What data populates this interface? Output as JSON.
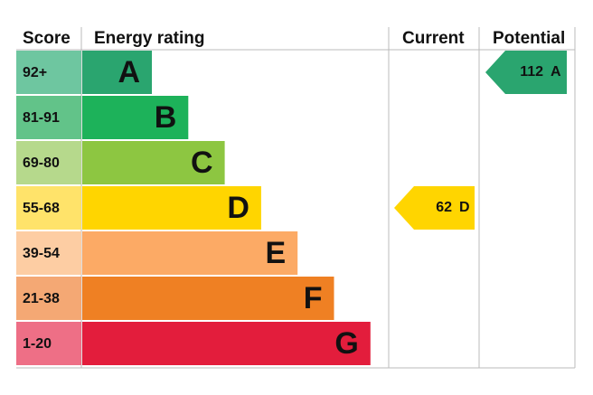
{
  "header": {
    "score": "Score",
    "rating": "Energy rating",
    "current": "Current",
    "potential": "Potential"
  },
  "bands": [
    {
      "score": "92+",
      "letter": "A",
      "color": "#2aa56f",
      "score_color": "#6ec6a0"
    },
    {
      "score": "81-91",
      "letter": "B",
      "color": "#1db25a",
      "score_color": "#62c389"
    },
    {
      "score": "69-80",
      "letter": "C",
      "color": "#8dc641",
      "score_color": "#b6d98c"
    },
    {
      "score": "55-68",
      "letter": "D",
      "color": "#ffd500",
      "score_color": "#ffe36a"
    },
    {
      "score": "39-54",
      "letter": "E",
      "color": "#fcaa65",
      "score_color": "#fdcda3"
    },
    {
      "score": "21-38",
      "letter": "F",
      "color": "#ef8023",
      "score_color": "#f4a874"
    },
    {
      "score": "1-20",
      "letter": "G",
      "color": "#e31d3c",
      "score_color": "#ee6f86"
    }
  ],
  "current": {
    "value": 62,
    "letter": "D"
  },
  "potential": {
    "value": 112,
    "letter": "A"
  }
}
